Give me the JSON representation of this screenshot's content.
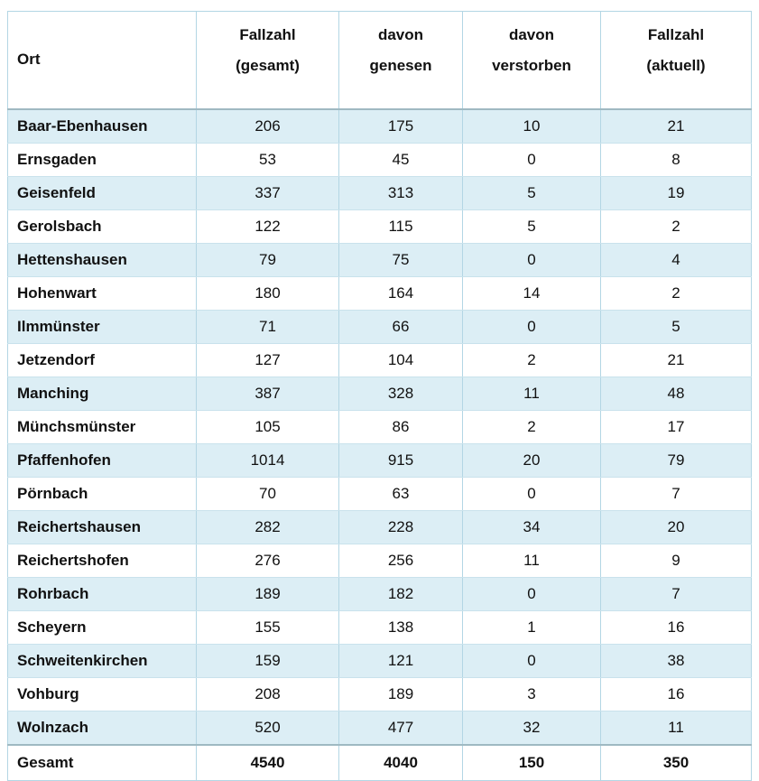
{
  "table": {
    "columns": [
      {
        "line1": "Ort",
        "line2": ""
      },
      {
        "line1": "Fallzahl",
        "line2": "(gesamt)"
      },
      {
        "line1": "davon",
        "line2": "genesen"
      },
      {
        "line1": "davon",
        "line2": "verstorben"
      },
      {
        "line1": "Fallzahl",
        "line2": "(aktuell)"
      }
    ],
    "rows": [
      {
        "ort": "Baar-Ebenhausen",
        "gesamt": "206",
        "genesen": "175",
        "verstorben": "10",
        "aktuell": "21"
      },
      {
        "ort": "Ernsgaden",
        "gesamt": "53",
        "genesen": "45",
        "verstorben": "0",
        "aktuell": "8"
      },
      {
        "ort": "Geisenfeld",
        "gesamt": "337",
        "genesen": "313",
        "verstorben": "5",
        "aktuell": "19"
      },
      {
        "ort": "Gerolsbach",
        "gesamt": "122",
        "genesen": "115",
        "verstorben": "5",
        "aktuell": "2"
      },
      {
        "ort": "Hettenshausen",
        "gesamt": "79",
        "genesen": "75",
        "verstorben": "0",
        "aktuell": "4"
      },
      {
        "ort": "Hohenwart",
        "gesamt": "180",
        "genesen": "164",
        "verstorben": "14",
        "aktuell": "2"
      },
      {
        "ort": "Ilmmünster",
        "gesamt": "71",
        "genesen": "66",
        "verstorben": "0",
        "aktuell": "5"
      },
      {
        "ort": "Jetzendorf",
        "gesamt": "127",
        "genesen": "104",
        "verstorben": "2",
        "aktuell": "21"
      },
      {
        "ort": "Manching",
        "gesamt": "387",
        "genesen": "328",
        "verstorben": "11",
        "aktuell": "48"
      },
      {
        "ort": "Münchsmünster",
        "gesamt": "105",
        "genesen": "86",
        "verstorben": "2",
        "aktuell": "17"
      },
      {
        "ort": "Pfaffenhofen",
        "gesamt": "1014",
        "genesen": "915",
        "verstorben": "20",
        "aktuell": "79"
      },
      {
        "ort": "Pörnbach",
        "gesamt": "70",
        "genesen": "63",
        "verstorben": "0",
        "aktuell": "7"
      },
      {
        "ort": "Reichertshausen",
        "gesamt": "282",
        "genesen": "228",
        "verstorben": "34",
        "aktuell": "20"
      },
      {
        "ort": "Reichertshofen",
        "gesamt": "276",
        "genesen": "256",
        "verstorben": "11",
        "aktuell": "9"
      },
      {
        "ort": "Rohrbach",
        "gesamt": "189",
        "genesen": "182",
        "verstorben": "0",
        "aktuell": "7"
      },
      {
        "ort": "Scheyern",
        "gesamt": "155",
        "genesen": "138",
        "verstorben": "1",
        "aktuell": "16"
      },
      {
        "ort": "Schweitenkirchen",
        "gesamt": "159",
        "genesen": "121",
        "verstorben": "0",
        "aktuell": "38"
      },
      {
        "ort": "Vohburg",
        "gesamt": "208",
        "genesen": "189",
        "verstorben": "3",
        "aktuell": "16"
      },
      {
        "ort": "Wolnzach",
        "gesamt": "520",
        "genesen": "477",
        "verstorben": "32",
        "aktuell": "11"
      }
    ],
    "footer": {
      "ort": "Gesamt",
      "gesamt": "4540",
      "genesen": "4040",
      "verstorben": "150",
      "aktuell": "350"
    },
    "colors": {
      "stripe": "#dceef5",
      "grid": "#b3d6e4",
      "row_divider": "#c9e2ec",
      "section_divider": "#9fb9c2",
      "text": "#111111"
    }
  }
}
